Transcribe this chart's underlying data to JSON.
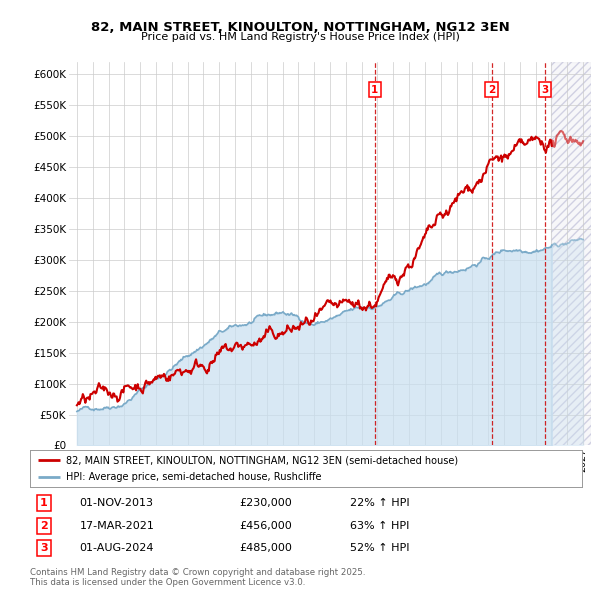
{
  "title": "82, MAIN STREET, KINOULTON, NOTTINGHAM, NG12 3EN",
  "subtitle": "Price paid vs. HM Land Registry's House Price Index (HPI)",
  "legend_property": "82, MAIN STREET, KINOULTON, NOTTINGHAM, NG12 3EN (semi-detached house)",
  "legend_hpi": "HPI: Average price, semi-detached house, Rushcliffe",
  "transactions": [
    {
      "label": "1",
      "date": "01-NOV-2013",
      "date_num": 2013.83,
      "price": 230000,
      "pct": "22% ↑ HPI"
    },
    {
      "label": "2",
      "date": "17-MAR-2021",
      "date_num": 2021.21,
      "price": 456000,
      "pct": "63% ↑ HPI"
    },
    {
      "label": "3",
      "date": "01-AUG-2024",
      "date_num": 2024.58,
      "price": 485000,
      "pct": "52% ↑ HPI"
    }
  ],
  "xlim": [
    1994.5,
    2027.5
  ],
  "ylim": [
    0,
    620000
  ],
  "yticks": [
    0,
    50000,
    100000,
    150000,
    200000,
    250000,
    300000,
    350000,
    400000,
    450000,
    500000,
    550000,
    600000
  ],
  "ytick_labels": [
    "£0",
    "£50K",
    "£100K",
    "£150K",
    "£200K",
    "£250K",
    "£300K",
    "£350K",
    "£400K",
    "£450K",
    "£500K",
    "£550K",
    "£600K"
  ],
  "property_color": "#cc0000",
  "hpi_fill_color": "#c8dff0",
  "hpi_line_color": "#7aaac8",
  "grid_color": "#cccccc",
  "background_color": "#ffffff",
  "footnote": "Contains HM Land Registry data © Crown copyright and database right 2025.\nThis data is licensed under the Open Government Licence v3.0.",
  "xtick_start": 1995,
  "xtick_end": 2027,
  "future_start": 2025.0
}
